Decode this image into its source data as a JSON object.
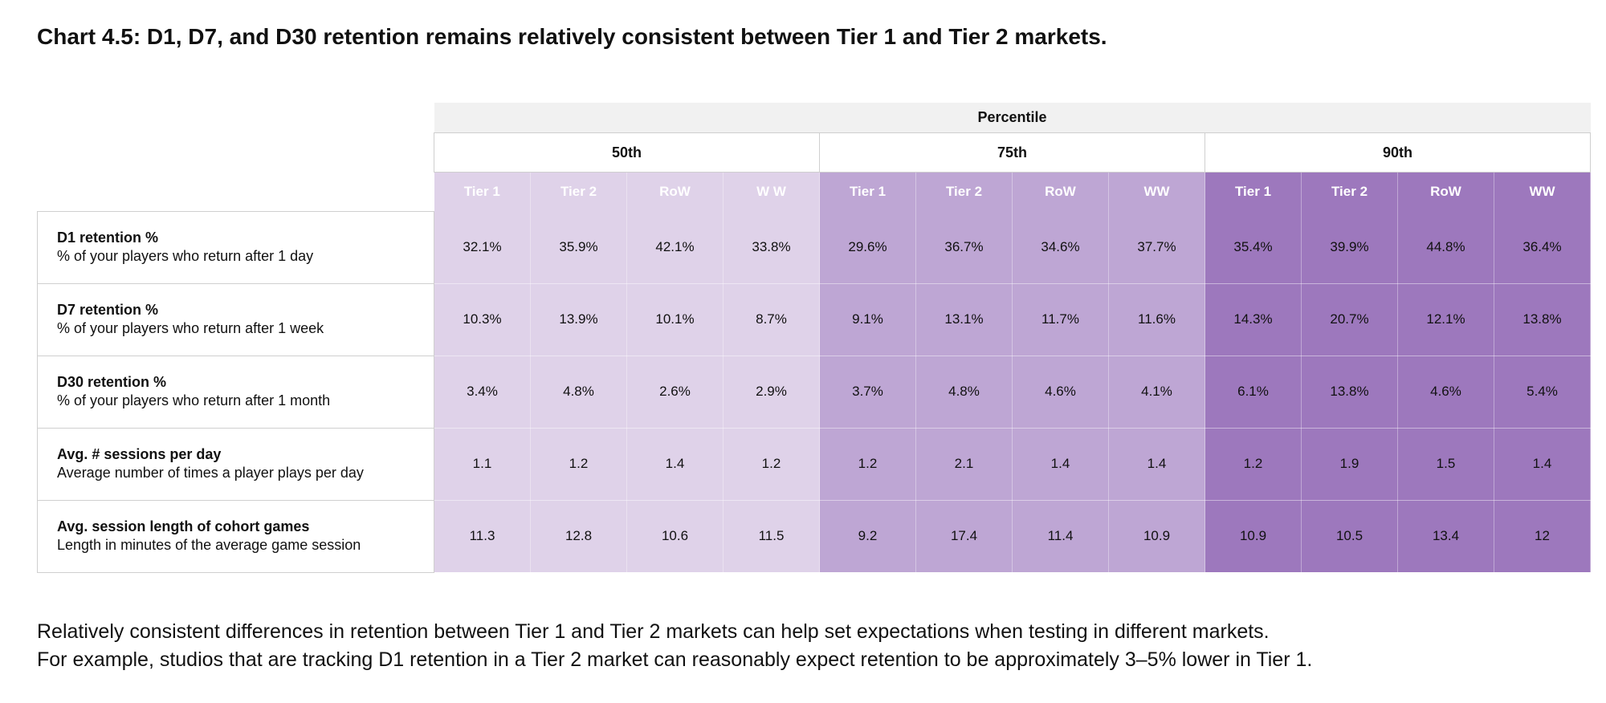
{
  "chart_data": {
    "type": "table",
    "title": "Chart 4.5: D1, D7, and D30 retention remains relatively consistent between Tier 1 and Tier 2 markets.",
    "header": "Percentile",
    "groups": [
      {
        "name": "50th",
        "columns": [
          "Tier 1",
          "Tier 2",
          "RoW",
          "W W"
        ],
        "color": "#dfd2e9"
      },
      {
        "name": "75th",
        "columns": [
          "Tier 1",
          "Tier 2",
          "RoW",
          "WW"
        ],
        "color": "#bea6d4"
      },
      {
        "name": "90th",
        "columns": [
          "Tier 1",
          "Tier 2",
          "RoW",
          "WW"
        ],
        "color": "#9d78bd"
      }
    ],
    "rows": [
      {
        "metric": "D1 retention %",
        "description": "% of your players who return after 1 day",
        "values": [
          "32.1%",
          "35.9%",
          "42.1%",
          "33.8%",
          "29.6%",
          "36.7%",
          "34.6%",
          "37.7%",
          "35.4%",
          "39.9%",
          "44.8%",
          "36.4%"
        ]
      },
      {
        "metric": "D7 retention %",
        "description": "% of your players who return after 1 week",
        "values": [
          "10.3%",
          "13.9%",
          "10.1%",
          "8.7%",
          "9.1%",
          "13.1%",
          "11.7%",
          "11.6%",
          "14.3%",
          "20.7%",
          "12.1%",
          "13.8%"
        ]
      },
      {
        "metric": "D30 retention %",
        "description": "% of your players who return after 1 month",
        "values": [
          "3.4%",
          "4.8%",
          "2.6%",
          "2.9%",
          "3.7%",
          "4.8%",
          "4.6%",
          "4.1%",
          "6.1%",
          "13.8%",
          "4.6%",
          "5.4%"
        ]
      },
      {
        "metric": "Avg. # sessions per day",
        "description": "Average number of times a player plays per day",
        "values": [
          "1.1",
          "1.2",
          "1.4",
          "1.2",
          "1.2",
          "2.1",
          "1.4",
          "1.4",
          "1.2",
          "1.9",
          "1.5",
          "1.4"
        ]
      },
      {
        "metric": "Avg. session length of cohort games",
        "description": "Length in minutes of the average game session",
        "values": [
          "11.3",
          "12.8",
          "10.6",
          "11.5",
          "9.2",
          "17.4",
          "11.4",
          "10.9",
          "10.9",
          "10.5",
          "13.4",
          "12"
        ]
      }
    ]
  },
  "footer": {
    "line1": "Relatively consistent differences in retention between Tier 1 and Tier 2 markets can help set expectations when testing in different markets.",
    "line2": "For example, studios that are tracking D1 retention in a Tier 2 market can reasonably expect retention to be approximately 3–5% lower in Tier 1."
  }
}
